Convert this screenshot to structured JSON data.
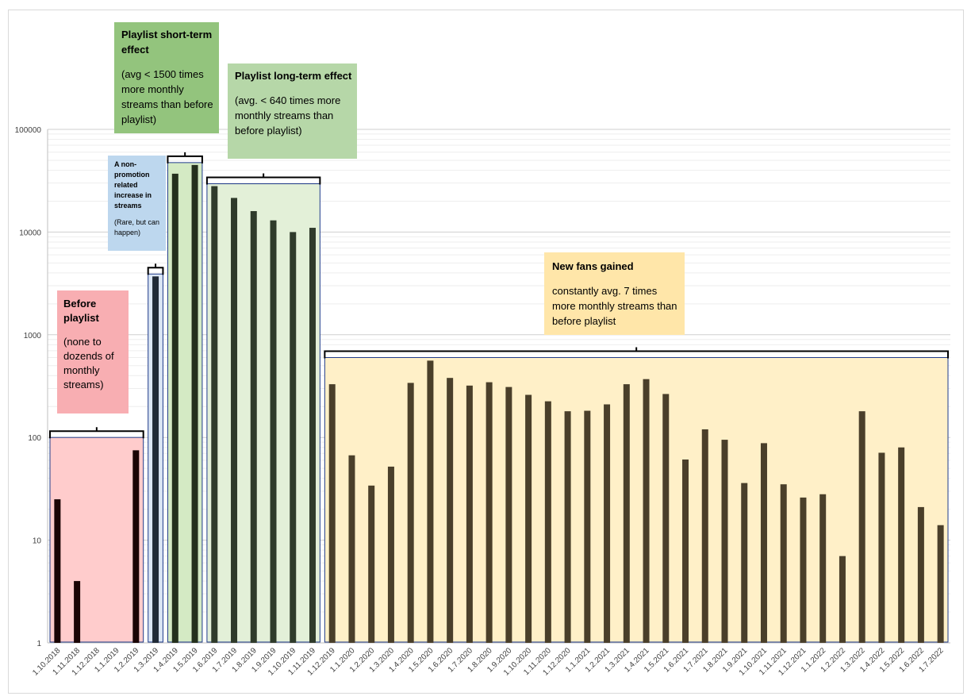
{
  "chart_data": {
    "type": "bar",
    "scale": "log",
    "ylim": [
      1,
      100000
    ],
    "y_ticks": [
      "1",
      "10",
      "100",
      "1000",
      "10000",
      "100000"
    ],
    "categories": [
      "1.10.2018",
      "1.11.2018",
      "1.12.2018",
      "1.1.2019",
      "1.2.2019",
      "1.3.2019",
      "1.4.2019",
      "1.5.2019",
      "1.6.2019",
      "1.7.2019",
      "1.8.2019",
      "1.9.2019",
      "1.10.2019",
      "1.11.2019",
      "1.12.2019",
      "1.1.2020",
      "1.2.2020",
      "1.3.2020",
      "1.4.2020",
      "1.5.2020",
      "1.6.2020",
      "1.7.2020",
      "1.8.2020",
      "1.9.2020",
      "1.10.2020",
      "1.11.2020",
      "1.12.2020",
      "1.1.2021",
      "1.2.2021",
      "1.3.2021",
      "1.4.2021",
      "1.5.2021",
      "1.6.2021",
      "1.7.2021",
      "1.8.2021",
      "1.9.2021",
      "1.10.2021",
      "1.11.2021",
      "1.12.2021",
      "1.1.2022",
      "1.2.2022",
      "1.3.2022",
      "1.4.2022",
      "1.5.2022",
      "1.6.2022",
      "1.7.2022"
    ],
    "values": [
      25,
      4,
      1,
      1,
      75,
      3700,
      37000,
      45000,
      28000,
      21500,
      16000,
      13000,
      10000,
      11000,
      330,
      67,
      34,
      52,
      340,
      560,
      380,
      320,
      345,
      310,
      260,
      225,
      180,
      182,
      210,
      330,
      370,
      265,
      61,
      120,
      95,
      36,
      88,
      35,
      26,
      28,
      7,
      180,
      71,
      80,
      21,
      14
    ],
    "groups": [
      {
        "name": "Before playlist",
        "start": 0,
        "end": 4,
        "color": "#ffcccc",
        "bar_color": "#1a0505"
      },
      {
        "name": "Non-promotion increase",
        "start": 5,
        "end": 5,
        "color": "#dbe6f4",
        "bar_color": "#202a36"
      },
      {
        "name": "Playlist short-term effect",
        "start": 6,
        "end": 7,
        "color": "#d4eac4",
        "bar_color": "#24301d"
      },
      {
        "name": "Playlist long-term effect",
        "start": 8,
        "end": 13,
        "color": "#e3f0d8",
        "bar_color": "#2f3b2b"
      },
      {
        "name": "New fans gained",
        "start": 14,
        "end": 45,
        "color": "#fff0c8",
        "bar_color": "#4a3f2a"
      }
    ]
  },
  "annotations": {
    "before": {
      "title": "Before playlist",
      "body": "(none to dozends of monthly streams)"
    },
    "nonpromo": {
      "title": "A non-promotion related increase in streams",
      "body": "(Rare, but can happen)"
    },
    "short": {
      "title": "Playlist short-term effect",
      "body": "(avg < 1500 times more monthly streams than before playlist)"
    },
    "long": {
      "title": "Playlist long-term effect",
      "body": "(avg. < 640 times more monthly streams than before playlist)"
    },
    "fans": {
      "title": "New fans gained",
      "body": "constantly avg. 7 times more monthly streams than before playlist"
    }
  },
  "colors": {
    "pink_box": "#f8aeb2",
    "blue_box": "#bdd7ee",
    "green_box": "#93c47d",
    "light_green_box": "#b6d7a8",
    "yellow_box": "#ffe6a9",
    "region_border": "#1f3b8a"
  }
}
